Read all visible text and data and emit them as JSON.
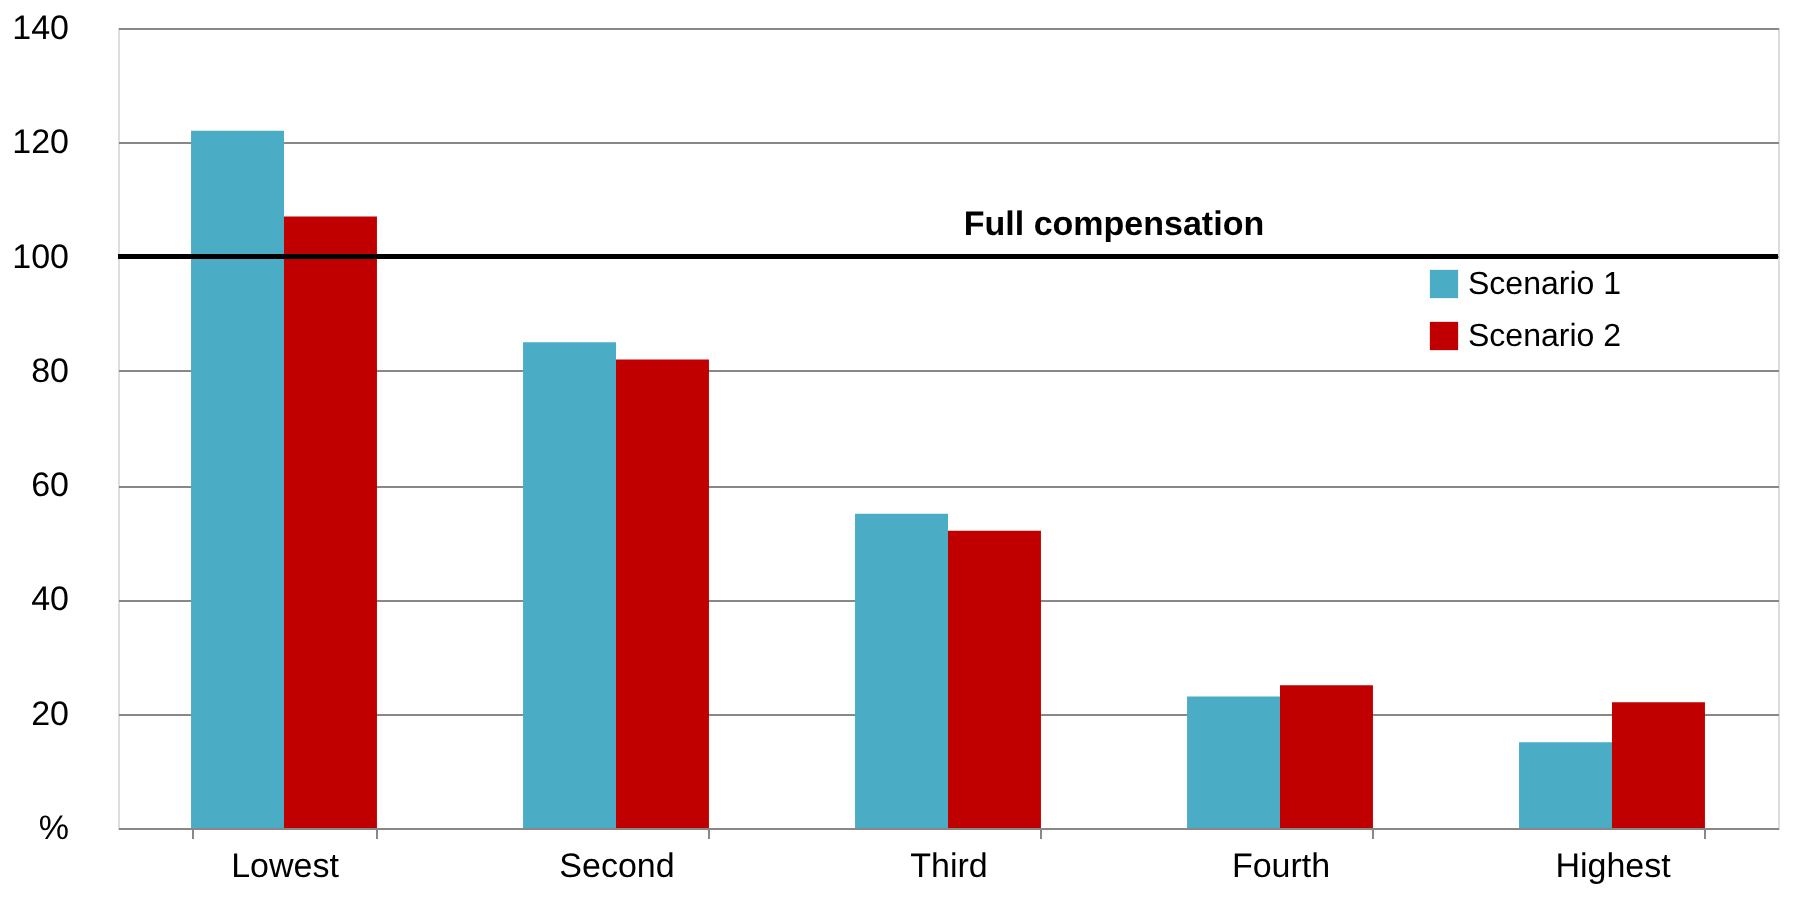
{
  "chart_data": {
    "type": "bar",
    "categories": [
      "Lowest",
      "Second",
      "Third",
      "Fourth",
      "Highest"
    ],
    "series": [
      {
        "name": "Scenario 1",
        "color": "#4bacc6",
        "values": [
          122,
          85,
          55,
          23,
          15
        ]
      },
      {
        "name": "Scenario 2",
        "color": "#c00000",
        "values": [
          107,
          82,
          52,
          25,
          22
        ]
      }
    ],
    "ylim": [
      0,
      140
    ],
    "yticks": [
      {
        "value": 0,
        "label": "%"
      },
      20,
      40,
      60,
      80,
      100,
      120,
      140
    ],
    "grid": "y",
    "legend": "right",
    "ref_lines": [
      {
        "axis": "y",
        "value": 100,
        "label": "Full compensation",
        "color": "#000000"
      }
    ]
  }
}
